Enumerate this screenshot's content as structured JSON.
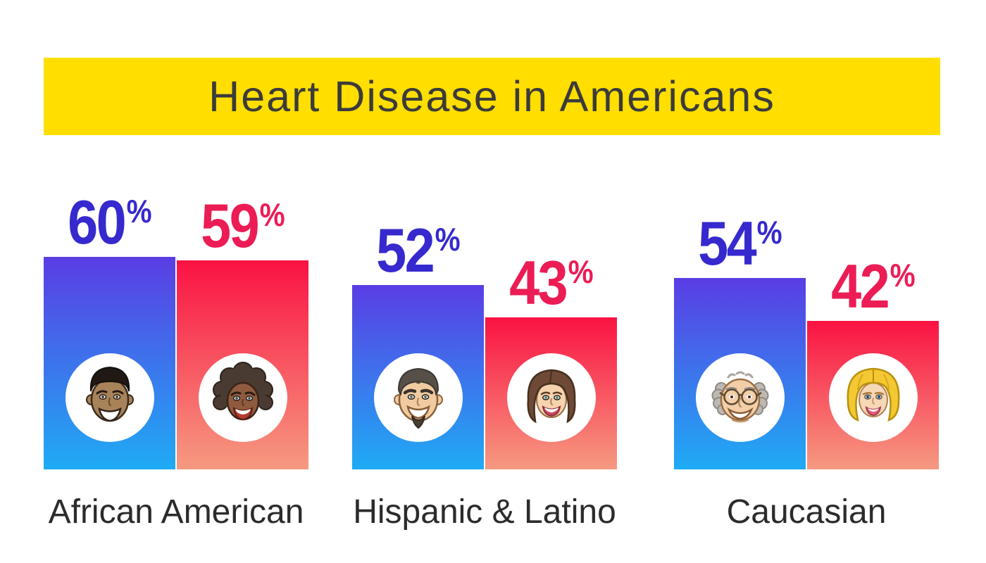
{
  "title": "Heart Disease in Americans",
  "unit": "%",
  "theme": {
    "banner_bg": "#FFDE00",
    "title_color": "#3B3B3B",
    "label_color": "#2B2B2B",
    "background": "#FFFFFF",
    "male_value_color": "#3629CE",
    "female_value_color": "#EC1C55",
    "male_bar_gradient_top": "#5A3DE4",
    "male_bar_gradient_bottom": "#1FABF4",
    "female_bar_gradient_top": "#FA1243",
    "female_bar_gradient_bottom": "#F69A81"
  },
  "chart_data": {
    "type": "bar",
    "title": "Heart Disease in Americans",
    "unit": "%",
    "ylim": [
      0,
      100
    ],
    "grid": false,
    "legend": "none",
    "categories": [
      "African American",
      "Hispanic & Latino",
      "Caucasian"
    ],
    "series": [
      {
        "name": "men",
        "style": "blue-gradient-bar",
        "values": [
          60,
          52,
          54
        ]
      },
      {
        "name": "women",
        "style": "red-gradient-bar",
        "values": [
          59,
          43,
          42
        ]
      }
    ],
    "groups": [
      {
        "label": "African American",
        "bars": [
          {
            "series": "men",
            "value": 60,
            "icon": "african-american-man-face"
          },
          {
            "series": "women",
            "value": 59,
            "icon": "african-american-woman-face"
          }
        ]
      },
      {
        "label": "Hispanic & Latino",
        "bars": [
          {
            "series": "men",
            "value": 52,
            "icon": "hispanic-man-face"
          },
          {
            "series": "women",
            "value": 43,
            "icon": "latina-woman-face"
          }
        ]
      },
      {
        "label": "Caucasian",
        "bars": [
          {
            "series": "men",
            "value": 54,
            "icon": "caucasian-man-face"
          },
          {
            "series": "women",
            "value": 42,
            "icon": "caucasian-woman-face"
          }
        ]
      }
    ]
  }
}
